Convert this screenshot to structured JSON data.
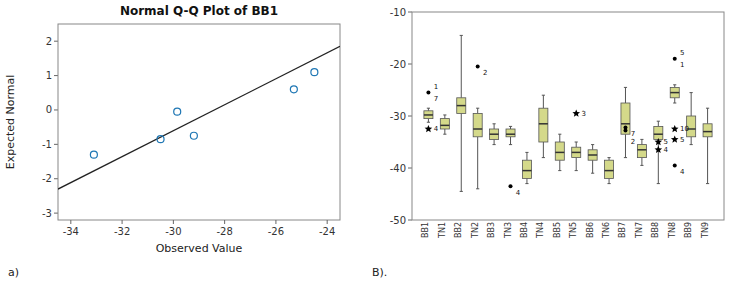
{
  "chart_data": [
    {
      "type": "scatter",
      "title": "Normal Q-Q Plot of BB1",
      "x_label": "Observed Value",
      "y_label": "Expected Normal",
      "annotation": "a)",
      "xlim": [
        -34.5,
        -23.5
      ],
      "ylim": [
        -3.2,
        2.5
      ],
      "xticks": [
        -34,
        -32,
        -30,
        -28,
        -26,
        -24
      ],
      "yticks": [
        -3,
        -2,
        -1,
        0,
        1,
        2
      ],
      "grid": false,
      "series": [
        {
          "type": "scatter",
          "marker": "circle",
          "x": [
            -33.1,
            -30.5,
            -29.85,
            -29.2,
            -25.3,
            -24.5
          ],
          "values": [
            -1.3,
            -0.85,
            -0.05,
            -0.75,
            0.6,
            1.1
          ]
        },
        {
          "type": "line",
          "line_style": "solid",
          "x": [
            -34.5,
            -23.5
          ],
          "values": [
            -2.3,
            1.85
          ]
        }
      ]
    },
    {
      "type": "box",
      "annotation": "B).",
      "categories": [
        "BB1",
        "TN1",
        "BB2",
        "TN2",
        "BB3",
        "TN3",
        "BB4",
        "TN4",
        "BB5",
        "TN5",
        "BB6",
        "TN6",
        "BB7",
        "TN7",
        "BB8",
        "TN8",
        "BB9",
        "TN9"
      ],
      "color": "#d4d98a",
      "ylim": [
        -50,
        -10
      ],
      "yticks": [
        -50,
        -40,
        -30,
        -20,
        -10
      ],
      "grid": false,
      "boxes": [
        {
          "q1": -30.5,
          "median": -29.8,
          "q3": -29.0,
          "whisker_low": -31.2,
          "whisker_high": -28.5,
          "outliers": [
            {
              "value": -25.5,
              "marker": "circle",
              "label": "7",
              "label_above": "1"
            },
            {
              "value": -32.5,
              "marker": "star",
              "label": "4"
            }
          ]
        },
        {
          "q1": -32.5,
          "median": -31.8,
          "q3": -30.5,
          "whisker_low": -33.5,
          "whisker_high": -29.8
        },
        {
          "q1": -29.5,
          "median": -28.0,
          "q3": -26.5,
          "whisker_low": -44.5,
          "whisker_high": -14.5
        },
        {
          "q1": -34.0,
          "median": -32.5,
          "q3": -29.5,
          "whisker_low": -44.0,
          "whisker_high": -28.5,
          "outliers": [
            {
              "value": -20.5,
              "marker": "circle",
              "label": "2"
            }
          ]
        },
        {
          "q1": -34.5,
          "median": -33.5,
          "q3": -32.5,
          "whisker_low": -35.5,
          "whisker_high": -31.5
        },
        {
          "q1": -34.0,
          "median": -33.5,
          "q3": -32.5,
          "whisker_low": -35.5,
          "whisker_high": -32.0,
          "outliers": [
            {
              "value": -43.5,
              "marker": "circle",
              "label": "4"
            }
          ]
        },
        {
          "q1": -42.0,
          "median": -40.5,
          "q3": -38.5,
          "whisker_low": -43.0,
          "whisker_high": -37.0
        },
        {
          "q1": -35.0,
          "median": -31.5,
          "q3": -28.5,
          "whisker_low": -38.0,
          "whisker_high": -26.0
        },
        {
          "q1": -38.5,
          "median": -37.0,
          "q3": -35.0,
          "whisker_low": -40.5,
          "whisker_high": -33.5
        },
        {
          "q1": -38.0,
          "median": -37.0,
          "q3": -36.0,
          "whisker_low": -40.5,
          "whisker_high": -35.0,
          "outliers": [
            {
              "value": -29.5,
              "marker": "star",
              "label": "3"
            }
          ]
        },
        {
          "q1": -38.5,
          "median": -37.5,
          "q3": -36.5,
          "whisker_low": -41.0,
          "whisker_high": -35.5
        },
        {
          "q1": -42.0,
          "median": -40.5,
          "q3": -38.5,
          "whisker_low": -43.0,
          "whisker_high": -38.0
        },
        {
          "q1": -33.5,
          "median": -31.5,
          "q3": -27.5,
          "whisker_low": -38.0,
          "whisker_high": -24.5,
          "outliers": [
            {
              "value": -32.2,
              "marker": "circle",
              "label": "7"
            },
            {
              "value": -32.8,
              "marker": "circle",
              "label": "2"
            }
          ]
        },
        {
          "q1": -38.0,
          "median": -36.5,
          "q3": -35.5,
          "whisker_low": -39.5,
          "whisker_high": -34.5
        },
        {
          "q1": -34.5,
          "median": -33.5,
          "q3": -32.0,
          "whisker_low": -43.0,
          "whisker_high": -31.0,
          "outliers": [
            {
              "value": -35.0,
              "marker": "star",
              "label": "5"
            },
            {
              "value": -36.5,
              "marker": "star",
              "label": "4"
            }
          ]
        },
        {
          "q1": -26.5,
          "median": -25.5,
          "q3": -24.5,
          "whisker_low": -27.5,
          "whisker_high": -24.0,
          "outliers": [
            {
              "value": -19.0,
              "marker": "circle",
              "label": "1",
              "label_above": "5"
            },
            {
              "value": -39.5,
              "marker": "circle",
              "label": "4"
            },
            {
              "value": -32.5,
              "marker": "star",
              "label": "10"
            },
            {
              "value": -34.5,
              "marker": "star",
              "label": "5"
            }
          ]
        },
        {
          "q1": -34.0,
          "median": -32.5,
          "q3": -30.0,
          "whisker_low": -35.5,
          "whisker_high": -25.5
        },
        {
          "q1": -34.0,
          "median": -33.0,
          "q3": -31.5,
          "whisker_low": -43.0,
          "whisker_high": -28.5
        }
      ]
    }
  ]
}
